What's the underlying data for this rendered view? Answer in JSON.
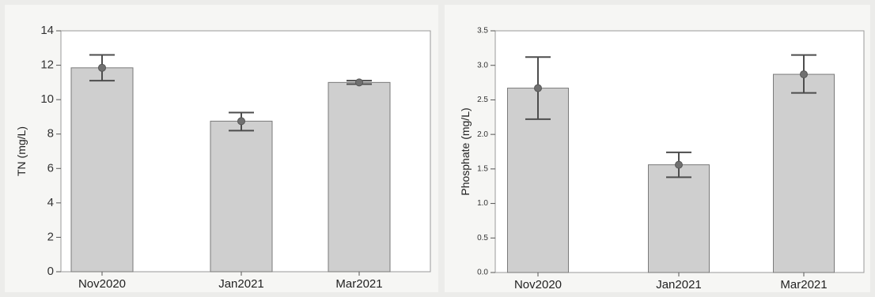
{
  "chart_data": [
    {
      "type": "bar",
      "title": "",
      "xlabel": "",
      "ylabel": "TN (mg/L)",
      "categories": [
        "Nov2020",
        "Jan2021",
        "Mar2021"
      ],
      "values": [
        11.85,
        8.75,
        11.0
      ],
      "error_low": [
        11.1,
        8.2,
        10.9
      ],
      "error_high": [
        12.6,
        9.25,
        11.1
      ],
      "ylim": [
        0,
        14
      ],
      "yticks": [
        0,
        2,
        4,
        6,
        8,
        10,
        12,
        14
      ],
      "ytick_labels": [
        "0",
        "2",
        "4",
        "6",
        "8",
        "10",
        "12",
        "14"
      ],
      "grid": false,
      "bar_color": "#cfcfcf"
    },
    {
      "type": "bar",
      "title": "",
      "xlabel": "",
      "ylabel": "Phosphate (mg/L)",
      "categories": [
        "Nov2020",
        "Jan2021",
        "Mar2021"
      ],
      "values": [
        2.67,
        1.56,
        2.87
      ],
      "error_low": [
        2.22,
        1.38,
        2.6
      ],
      "error_high": [
        3.12,
        1.74,
        3.15
      ],
      "ylim": [
        0,
        3.5
      ],
      "yticks": [
        0,
        0.5,
        1,
        1.5,
        2,
        2.5,
        3,
        3.5
      ],
      "ytick_labels": [
        "0.0",
        "0.5",
        "1.0",
        "1.5",
        "2.0",
        "2.5",
        "3.0",
        "3.5"
      ],
      "grid": false,
      "bar_color": "#cfcfcf"
    }
  ]
}
